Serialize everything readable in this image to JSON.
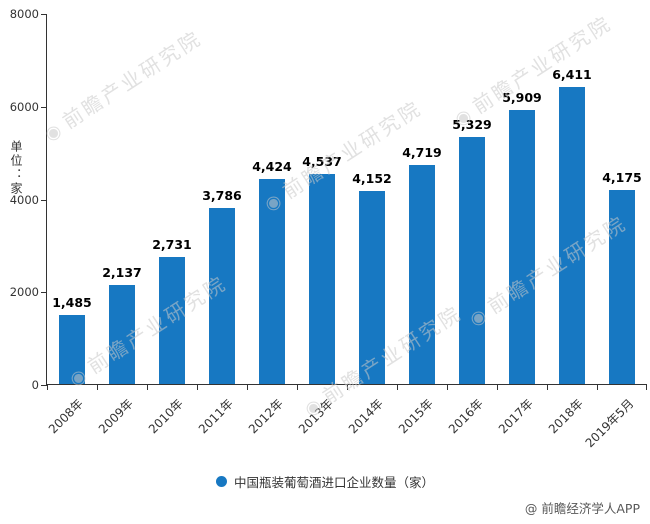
{
  "chart": {
    "legend": "中国瓶装葡萄酒进口企业数量（家）",
    "attribution": "@ 前瞻经济学人APP",
    "watermark": "前瞻产业研究院",
    "bar_color": "#1778c2",
    "icons": {
      "legend_marker": "filled-circle",
      "watermark_logo": "◉"
    }
  },
  "chart_data": {
    "type": "bar",
    "title": "",
    "xlabel": "",
    "ylabel": "单位：家",
    "categories": [
      "2008年",
      "2009年",
      "2010年",
      "2011年",
      "2012年",
      "2013年",
      "2014年",
      "2015年",
      "2016年",
      "2017年",
      "2018年",
      "2019年5月"
    ],
    "values": [
      1485,
      2137,
      2731,
      3786,
      4424,
      4537,
      4152,
      4719,
      5329,
      5909,
      6411,
      4175
    ],
    "value_labels": [
      "1,485",
      "2,137",
      "2,731",
      "3,786",
      "4,424",
      "4,537",
      "4,152",
      "4,719",
      "5,329",
      "5,909",
      "6,411",
      "4,175"
    ],
    "ylim": [
      0,
      8000
    ],
    "yticks": [
      0,
      2000,
      4000,
      6000,
      8000
    ],
    "ytick_labels": [
      "0",
      "2000",
      "4000",
      "6000",
      "8000"
    ],
    "grid": false,
    "legend_entries": [
      "中国瓶装葡萄酒进口企业数量（家）"
    ],
    "legend_position": "bottom"
  }
}
